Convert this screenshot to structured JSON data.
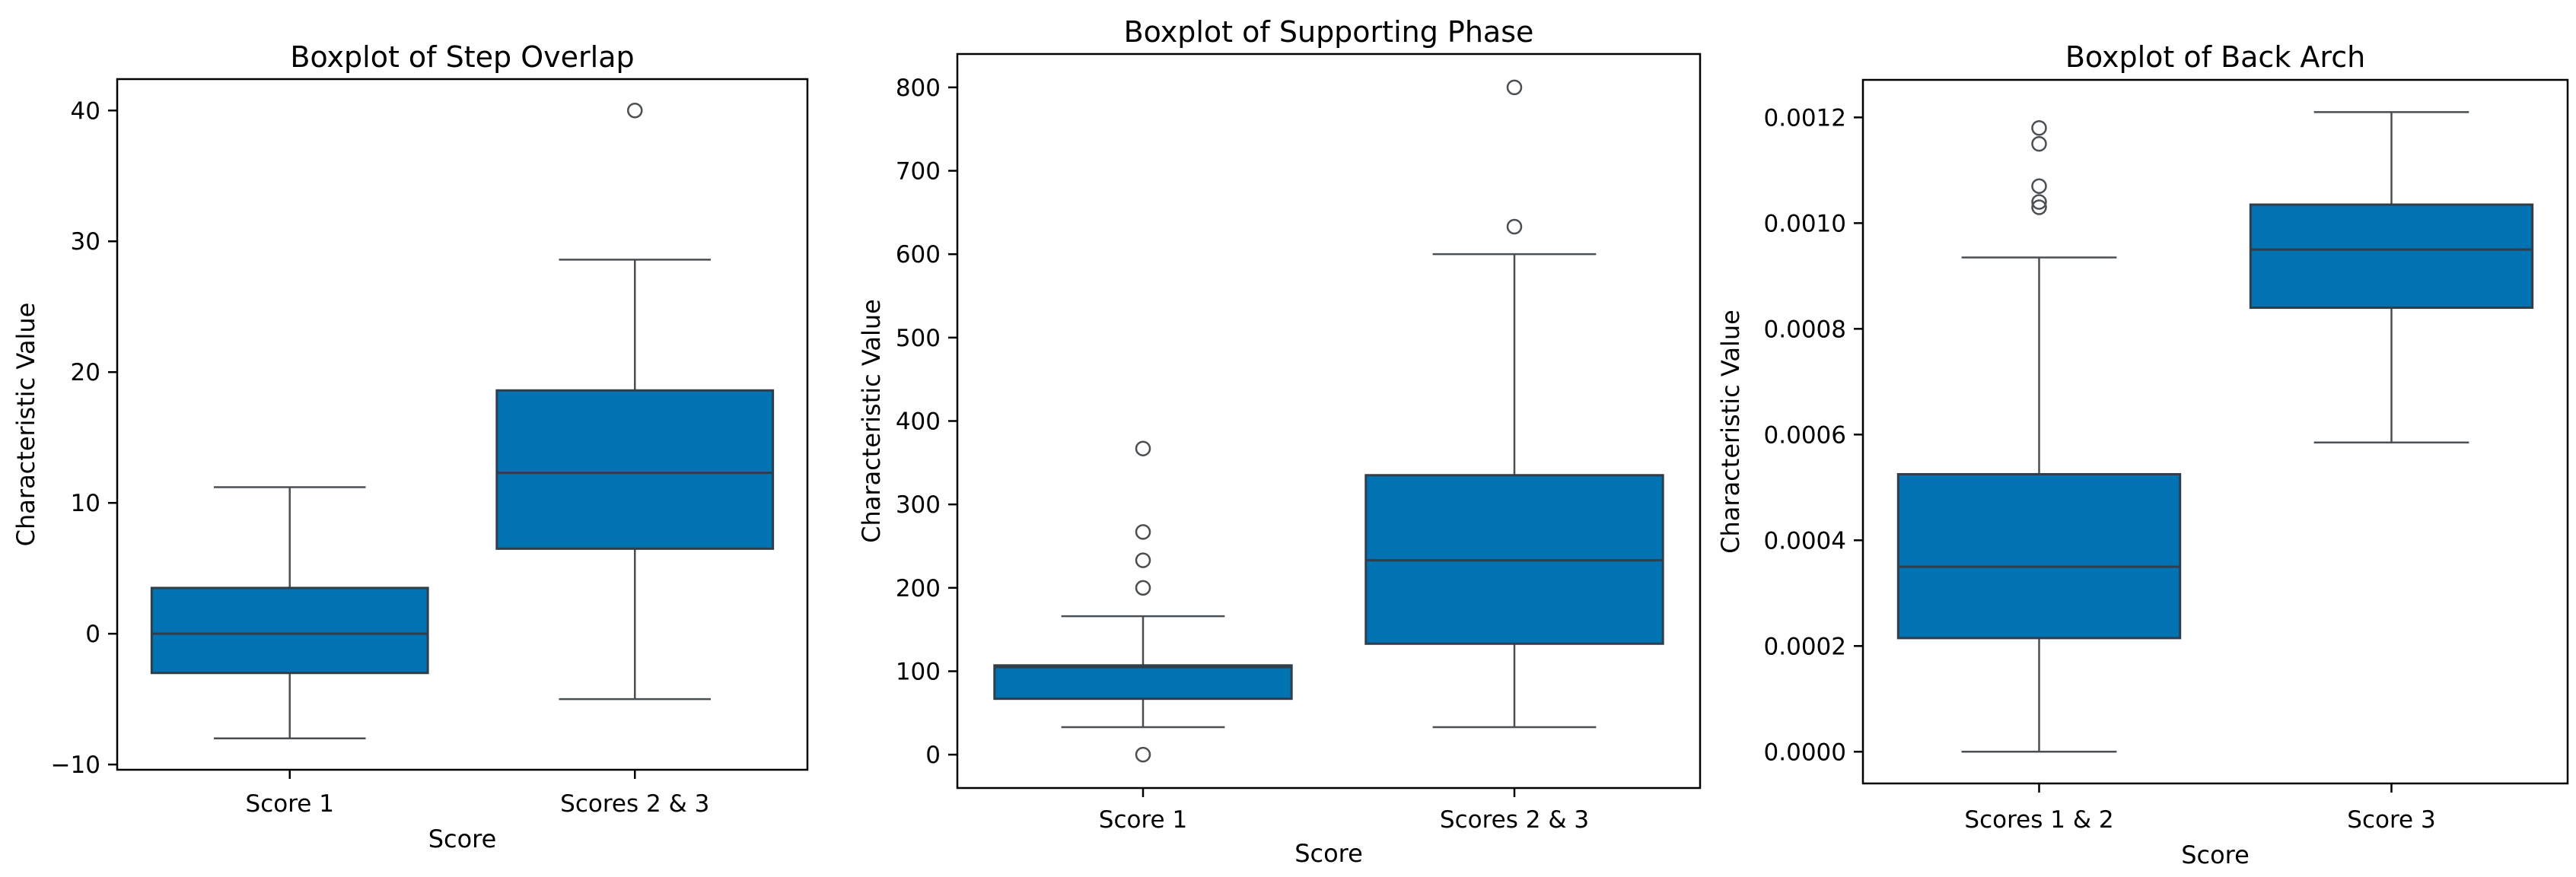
{
  "figure": {
    "background": "#ffffff",
    "box_fill_color": "#0173b2",
    "box_edge_color": "#2f3e4a",
    "whisker_color": "#4a4f53",
    "spine_color": "#000000",
    "text_color": "#000000"
  },
  "chart_data": [
    {
      "type": "box",
      "title": "Boxplot of Step Overlap",
      "xlabel": "Score",
      "ylabel": "Characteristic Value",
      "categories": [
        "Score 1",
        "Scores 2 & 3"
      ],
      "ylim": [
        -10.4,
        42.4
      ],
      "yticks": [
        -10,
        0,
        10,
        20,
        30,
        40
      ],
      "ytick_labels": [
        "−10",
        "0",
        "10",
        "20",
        "30",
        "40"
      ],
      "grid": false,
      "legend": null,
      "series": [
        {
          "category": "Score 1",
          "whisker_low": -8,
          "q1": -3,
          "median": 0,
          "q3": 3.5,
          "whisker_high": 11.2,
          "outliers": []
        },
        {
          "category": "Scores 2 & 3",
          "whisker_low": -5,
          "q1": 6.5,
          "median": 12.3,
          "q3": 18.6,
          "whisker_high": 28.6,
          "outliers": [
            40
          ]
        }
      ]
    },
    {
      "type": "box",
      "title": "Boxplot of Supporting Phase",
      "xlabel": "Score",
      "ylabel": "Characteristic Value",
      "categories": [
        "Score 1",
        "Scores 2 & 3"
      ],
      "ylim": [
        -40,
        840
      ],
      "yticks": [
        0,
        100,
        200,
        300,
        400,
        500,
        600,
        700,
        800
      ],
      "ytick_labels": [
        "0",
        "100",
        "200",
        "300",
        "400",
        "500",
        "600",
        "700",
        "800"
      ],
      "grid": false,
      "legend": null,
      "series": [
        {
          "category": "Score 1",
          "whisker_low": 33,
          "q1": 67,
          "median": 105,
          "q3": 107,
          "whisker_high": 166,
          "outliers": [
            0,
            200,
            233,
            267,
            367
          ]
        },
        {
          "category": "Scores 2 & 3",
          "whisker_low": 33,
          "q1": 133,
          "median": 233,
          "q3": 335,
          "whisker_high": 600,
          "outliers": [
            633,
            800
          ]
        }
      ]
    },
    {
      "type": "box",
      "title": "Boxplot of Back Arch",
      "xlabel": "Score",
      "ylabel": "Characteristic Value",
      "categories": [
        "Scores 1 & 2",
        "Score 3"
      ],
      "ylim": [
        -6e-05,
        0.001271
      ],
      "yticks": [
        0.0,
        0.0002,
        0.0004,
        0.0006,
        0.0008,
        0.001,
        0.0012
      ],
      "ytick_labels": [
        "0.0000",
        "0.0002",
        "0.0004",
        "0.0006",
        "0.0008",
        "0.0010",
        "0.0012"
      ],
      "grid": false,
      "legend": null,
      "series": [
        {
          "category": "Scores 1 & 2",
          "whisker_low": 0.0,
          "q1": 0.000215,
          "median": 0.00035,
          "q3": 0.000525,
          "whisker_high": 0.000935,
          "outliers": [
            0.00103,
            0.00104,
            0.00107,
            0.00115,
            0.00118
          ]
        },
        {
          "category": "Score 3",
          "whisker_low": 0.000585,
          "q1": 0.00084,
          "median": 0.00095,
          "q3": 0.001035,
          "whisker_high": 0.00121,
          "outliers": []
        }
      ]
    }
  ]
}
